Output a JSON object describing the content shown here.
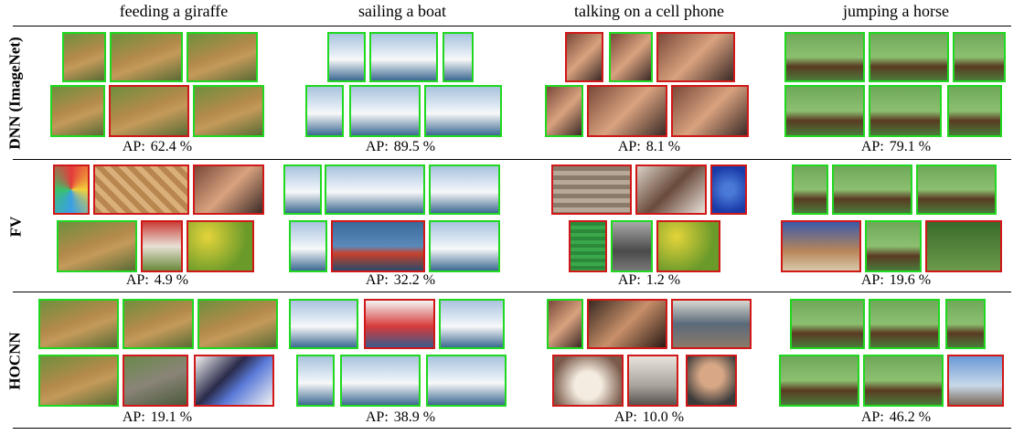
{
  "columns": [
    {
      "label": "feeding a giraffe"
    },
    {
      "label": "sailing a boat"
    },
    {
      "label": "talking on a cell phone"
    },
    {
      "label": "jumping a horse"
    }
  ],
  "ap_label": "AP:",
  "rows": [
    {
      "method": "DNN (ImageNet)",
      "ap": [
        "62.4 %",
        "89.5 %",
        "8.1 %",
        "79.1 %"
      ]
    },
    {
      "method": "FV",
      "ap": [
        "4.9 %",
        "32.2 %",
        "1.2 %",
        "19.6 %"
      ]
    },
    {
      "method": "HOCNN",
      "ap": [
        "19.1 %",
        "38.9 %",
        "10.0 %",
        "46.2 %"
      ]
    }
  ],
  "border_colors": {
    "correct": "#1fd81f",
    "incorrect": "#d01818"
  },
  "thumbnails": [
    [
      [
        [
          "giraffe-photo",
          "correct"
        ],
        [
          "giraffe-photo",
          "correct"
        ],
        [
          "giraffe-photo",
          "correct"
        ],
        [
          "giraffe-photo",
          "correct"
        ],
        [
          "giraffe-photo",
          "incorrect"
        ],
        [
          "giraffe-photo",
          "correct"
        ]
      ],
      [
        [
          "sailboat-photo",
          "correct"
        ],
        [
          "sailboat-photo",
          "correct"
        ],
        [
          "sailboat-photo",
          "correct"
        ],
        [
          "sailboat-photo",
          "correct"
        ],
        [
          "sailboat-photo",
          "correct"
        ],
        [
          "sailboat-photo",
          "correct"
        ]
      ],
      [
        [
          "phone-photo",
          "incorrect"
        ],
        [
          "phone-photo",
          "correct"
        ],
        [
          "phone-photo",
          "incorrect"
        ],
        [
          "phone-photo",
          "correct"
        ],
        [
          "phone-photo",
          "incorrect"
        ],
        [
          "phone-photo",
          "incorrect"
        ]
      ],
      [
        [
          "horse-jump-photo",
          "correct"
        ],
        [
          "horse-jump-photo",
          "correct"
        ],
        [
          "horse-jump-photo",
          "correct"
        ],
        [
          "horse-jump-photo",
          "correct"
        ],
        [
          "horse-jump-photo",
          "correct"
        ],
        [
          "horse-jump-photo",
          "correct"
        ]
      ]
    ],
    [
      [
        [
          "umbrella-photo",
          "incorrect"
        ],
        [
          "pattern-photo",
          "incorrect"
        ],
        [
          "phone-photo",
          "incorrect"
        ],
        [
          "giraffe-photo",
          "correct"
        ],
        [
          "baseball-photo",
          "incorrect"
        ],
        [
          "fruit-photo",
          "incorrect"
        ]
      ],
      [
        [
          "sailboat-photo",
          "correct"
        ],
        [
          "sailboat-photo",
          "correct"
        ],
        [
          "sailboat-photo",
          "correct"
        ],
        [
          "sailboat-photo",
          "correct"
        ],
        [
          "kayak-photo",
          "incorrect"
        ],
        [
          "sailboat-photo",
          "correct"
        ]
      ],
      [
        [
          "stairs-photo",
          "incorrect"
        ],
        [
          "people-photo",
          "incorrect"
        ],
        [
          "diver-photo",
          "incorrect"
        ],
        [
          "stadium-photo",
          "incorrect"
        ],
        [
          "street-photo",
          "correct"
        ],
        [
          "fruit-photo",
          "incorrect"
        ]
      ],
      [
        [
          "horse-jump-photo",
          "correct"
        ],
        [
          "horse-jump-photo",
          "correct"
        ],
        [
          "horse-jump-photo",
          "correct"
        ],
        [
          "rodeo-photo",
          "incorrect"
        ],
        [
          "horse-jump-photo",
          "correct"
        ],
        [
          "field-photo",
          "incorrect"
        ]
      ]
    ],
    [
      [
        [
          "giraffe-photo",
          "correct"
        ],
        [
          "giraffe-photo",
          "correct"
        ],
        [
          "giraffe-photo",
          "correct"
        ],
        [
          "giraffe-photo",
          "correct"
        ],
        [
          "elephant-photo",
          "incorrect"
        ],
        [
          "tv-photo",
          "incorrect"
        ]
      ],
      [
        [
          "sailboat-photo",
          "correct"
        ],
        [
          "tugboat-photo",
          "incorrect"
        ],
        [
          "sailboat-photo",
          "correct"
        ],
        [
          "sailboat-photo",
          "correct"
        ],
        [
          "sailboat-photo",
          "correct"
        ],
        [
          "sailboat-photo",
          "correct"
        ]
      ],
      [
        [
          "phone-photo",
          "correct"
        ],
        [
          "couple-photo",
          "incorrect"
        ],
        [
          "crowd-photo",
          "incorrect"
        ],
        [
          "dog-photo",
          "incorrect"
        ],
        [
          "bench-photo",
          "incorrect"
        ],
        [
          "portrait-photo",
          "incorrect"
        ]
      ],
      [
        [
          "horse-jump-photo",
          "correct"
        ],
        [
          "horse-jump-photo",
          "correct"
        ],
        [
          "horse-jump-photo",
          "correct"
        ],
        [
          "horse-jump-photo",
          "correct"
        ],
        [
          "horse-jump-photo",
          "correct"
        ],
        [
          "motocross-photo",
          "incorrect"
        ]
      ]
    ]
  ]
}
